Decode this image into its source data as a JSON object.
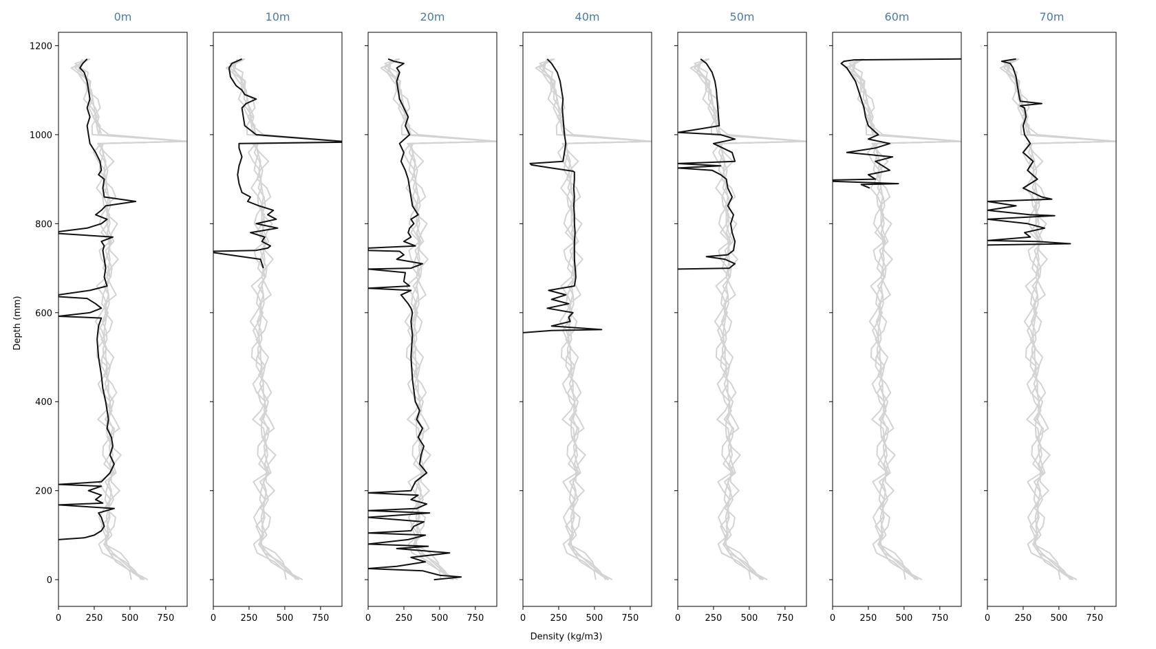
{
  "chart_data": {
    "type": "line",
    "xlabel": "Density (kg/m3)",
    "ylabel": "Depth (mm)",
    "xlim": [
      0,
      900
    ],
    "ylim": [
      -60,
      1230
    ],
    "xticks": [
      0,
      250,
      500,
      750
    ],
    "yticks": [
      0,
      200,
      400,
      600,
      800,
      1000,
      1200
    ],
    "colors": {
      "title": "#4a7aa5",
      "highlight": "#111111",
      "reference": "#d3d3d3"
    },
    "panels": [
      {
        "title": "0m",
        "series": {
          "depth": [
            1170,
            1160,
            1150,
            1140,
            1120,
            1100,
            1080,
            1060,
            1040,
            1020,
            1000,
            980,
            960,
            940,
            920,
            910,
            900,
            880,
            860,
            850,
            840,
            830,
            820,
            810,
            800,
            790,
            782,
            778,
            770,
            760,
            750,
            740,
            720,
            700,
            680,
            660,
            650,
            640,
            636,
            632,
            620,
            610,
            600,
            592,
            588,
            570,
            540,
            500,
            460,
            430,
            400,
            380,
            360,
            340,
            320,
            300,
            280,
            260,
            240,
            230,
            220,
            214,
            210,
            200,
            190,
            180,
            172,
            168,
            160,
            150,
            140,
            130,
            120,
            110,
            100,
            94,
            90
          ],
          "density": [
            200,
            170,
            150,
            180,
            200,
            210,
            220,
            200,
            220,
            200,
            210,
            220,
            260,
            290,
            300,
            280,
            320,
            310,
            320,
            540,
            330,
            300,
            260,
            340,
            300,
            200,
            0,
            0,
            380,
            300,
            320,
            310,
            320,
            330,
            320,
            340,
            220,
            0,
            0,
            200,
            260,
            300,
            220,
            0,
            300,
            280,
            270,
            280,
            300,
            310,
            330,
            340,
            350,
            340,
            370,
            380,
            360,
            390,
            360,
            330,
            300,
            0,
            300,
            210,
            300,
            260,
            310,
            0,
            390,
            280,
            300,
            310,
            320,
            300,
            250,
            180,
            0
          ]
        }
      },
      {
        "title": "10m",
        "series": {
          "depth": [
            1170,
            1160,
            1150,
            1130,
            1110,
            1100,
            1090,
            1080,
            1070,
            1060,
            1040,
            1020,
            1000,
            985,
            983,
            980,
            970,
            950,
            930,
            910,
            890,
            870,
            860,
            850,
            840,
            830,
            820,
            810,
            800,
            790,
            780,
            770,
            760,
            750,
            745,
            740,
            738,
            735,
            720,
            710,
            700
          ],
          "density": [
            200,
            130,
            110,
            120,
            160,
            200,
            220,
            300,
            230,
            200,
            210,
            220,
            300,
            900,
            900,
            180,
            180,
            200,
            180,
            170,
            180,
            200,
            260,
            240,
            320,
            420,
            380,
            440,
            300,
            450,
            260,
            360,
            340,
            400,
            380,
            300,
            0,
            0,
            330,
            340,
            350
          ]
        }
      },
      {
        "title": "20m",
        "series": {
          "depth": [
            1170,
            1165,
            1160,
            1150,
            1140,
            1120,
            1100,
            1080,
            1060,
            1040,
            1020,
            1000,
            980,
            960,
            940,
            920,
            900,
            880,
            860,
            840,
            820,
            810,
            800,
            790,
            780,
            770,
            760,
            750,
            745,
            740,
            738,
            730,
            720,
            710,
            700,
            698,
            690,
            670,
            660,
            655,
            650,
            640,
            620,
            610,
            600,
            580,
            550,
            500,
            450,
            400,
            380,
            360,
            340,
            320,
            300,
            280,
            260,
            240,
            220,
            200,
            195,
            190,
            180,
            170,
            160,
            155,
            150,
            140,
            130,
            120,
            110,
            105,
            100,
            90,
            80,
            75,
            70,
            60,
            50,
            40,
            30,
            25,
            20,
            10,
            6,
            0
          ],
          "density": [
            140,
            180,
            250,
            200,
            220,
            200,
            210,
            220,
            250,
            280,
            260,
            290,
            220,
            250,
            230,
            260,
            280,
            290,
            300,
            310,
            350,
            300,
            320,
            290,
            280,
            300,
            250,
            330,
            0,
            0,
            220,
            250,
            200,
            380,
            300,
            0,
            260,
            250,
            290,
            0,
            300,
            230,
            280,
            300,
            310,
            300,
            310,
            300,
            310,
            330,
            360,
            340,
            380,
            350,
            390,
            370,
            360,
            410,
            330,
            300,
            0,
            350,
            300,
            410,
            340,
            0,
            430,
            0,
            390,
            320,
            300,
            0,
            400,
            280,
            0,
            420,
            200,
            570,
            300,
            400,
            200,
            0,
            380,
            500,
            650,
            460
          ]
        }
      },
      {
        "title": "40m",
        "series": {
          "depth": [
            1170,
            1160,
            1140,
            1120,
            1100,
            1080,
            1060,
            1040,
            1020,
            1000,
            980,
            960,
            940,
            935,
            932,
            925,
            918,
            916,
            900,
            880,
            860,
            840,
            820,
            800,
            780,
            760,
            740,
            720,
            700,
            680,
            660,
            650,
            640,
            630,
            620,
            610,
            600,
            590,
            580,
            570,
            562,
            560,
            555
          ],
          "density": [
            170,
            200,
            240,
            260,
            270,
            280,
            275,
            280,
            285,
            290,
            300,
            290,
            280,
            50,
            60,
            200,
            350,
            360,
            360,
            355,
            360,
            355,
            360,
            360,
            365,
            360,
            360,
            360,
            365,
            370,
            360,
            180,
            300,
            200,
            320,
            170,
            350,
            320,
            330,
            200,
            550,
            200,
            0
          ]
        }
      },
      {
        "title": "50m",
        "series": {
          "depth": [
            1170,
            1160,
            1140,
            1120,
            1100,
            1080,
            1060,
            1040,
            1020,
            1010,
            1005,
            1000,
            990,
            980,
            960,
            940,
            935,
            930,
            925,
            920,
            910,
            900,
            880,
            860,
            840,
            820,
            800,
            780,
            760,
            740,
            730,
            726,
            720,
            710,
            700,
            698
          ],
          "density": [
            160,
            200,
            240,
            260,
            270,
            275,
            280,
            285,
            290,
            100,
            0,
            300,
            400,
            250,
            380,
            400,
            0,
            300,
            0,
            240,
            300,
            340,
            350,
            380,
            350,
            390,
            370,
            380,
            400,
            390,
            350,
            200,
            330,
            400,
            360,
            0
          ]
        }
      },
      {
        "title": "60m",
        "series": {
          "depth": [
            1171,
            1170,
            1168,
            1165,
            1160,
            1150,
            1140,
            1120,
            1100,
            1080,
            1060,
            1040,
            1020,
            1000,
            990,
            980,
            970,
            960,
            950,
            940,
            930,
            920,
            910,
            900,
            898,
            895,
            890,
            888,
            880
          ],
          "density": [
            900,
            900,
            150,
            80,
            60,
            100,
            120,
            160,
            180,
            200,
            220,
            230,
            250,
            320,
            250,
            400,
            300,
            100,
            420,
            300,
            350,
            400,
            250,
            300,
            0,
            0,
            460,
            200,
            260
          ]
        }
      },
      {
        "title": "70m",
        "series": {
          "depth": [
            1170,
            1165,
            1160,
            1150,
            1130,
            1110,
            1090,
            1075,
            1070,
            1065,
            1060,
            1040,
            1020,
            1000,
            980,
            960,
            940,
            920,
            900,
            880,
            860,
            855,
            850,
            840,
            830,
            820,
            818,
            810,
            800,
            790,
            780,
            770,
            762,
            760,
            755,
            752,
            750
          ],
          "density": [
            200,
            100,
            160,
            180,
            200,
            210,
            220,
            230,
            380,
            230,
            260,
            270,
            250,
            260,
            300,
            250,
            320,
            280,
            350,
            250,
            380,
            450,
            0,
            200,
            0,
            300,
            470,
            0,
            280,
            400,
            260,
            300,
            0,
            350,
            580,
            0,
            0
          ]
        }
      }
    ],
    "reference_profile": {
      "depth": [
        1170,
        1160,
        1150,
        1140,
        1120,
        1100,
        1080,
        1060,
        1040,
        1020,
        1000,
        985,
        980,
        960,
        940,
        920,
        900,
        880,
        860,
        840,
        820,
        800,
        780,
        760,
        740,
        720,
        700,
        680,
        660,
        640,
        620,
        600,
        580,
        560,
        540,
        520,
        500,
        480,
        460,
        440,
        420,
        400,
        380,
        360,
        340,
        320,
        300,
        280,
        260,
        240,
        220,
        200,
        180,
        160,
        140,
        120,
        100,
        80,
        60,
        40,
        20,
        0
      ],
      "density": [
        200,
        150,
        140,
        160,
        200,
        220,
        240,
        250,
        260,
        280,
        300,
        900,
        300,
        310,
        330,
        320,
        330,
        340,
        350,
        340,
        350,
        360,
        340,
        370,
        350,
        360,
        350,
        360,
        340,
        350,
        330,
        340,
        330,
        320,
        320,
        330,
        330,
        340,
        340,
        350,
        350,
        360,
        370,
        350,
        380,
        360,
        370,
        380,
        360,
        390,
        350,
        370,
        360,
        350,
        360,
        340,
        350,
        330,
        380,
        450,
        520,
        600
      ]
    }
  }
}
